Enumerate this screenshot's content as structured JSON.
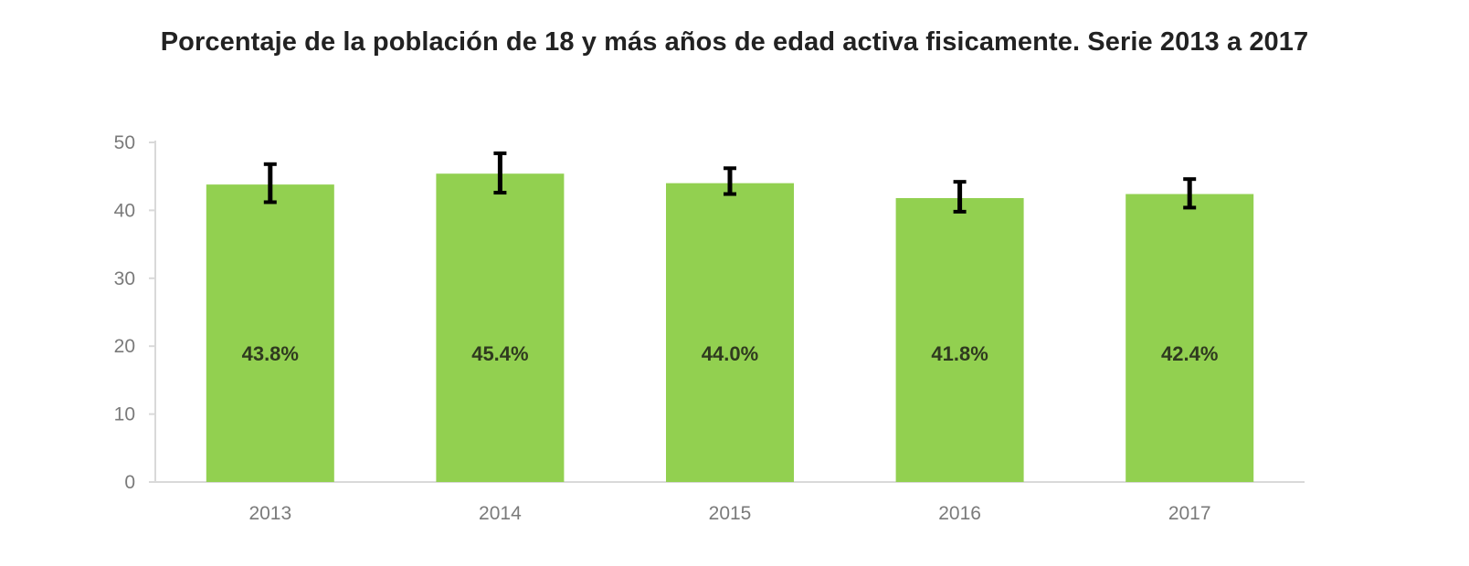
{
  "chart_data": {
    "type": "bar",
    "title": "Porcentaje de la población de 18 y más años de edad activa fisicamente. Serie 2013 a 2017",
    "xlabel": "",
    "ylabel": "",
    "categories": [
      "2013",
      "2014",
      "2015",
      "2016",
      "2017"
    ],
    "values": [
      43.8,
      45.4,
      44.0,
      41.8,
      42.4
    ],
    "value_labels": [
      "43.8%",
      "45.4%",
      "44.0%",
      "41.8%",
      "42.4%"
    ],
    "error_bars": [
      {
        "low": 41.2,
        "high": 46.8
      },
      {
        "low": 42.6,
        "high": 48.4
      },
      {
        "low": 42.4,
        "high": 46.2
      },
      {
        "low": 39.8,
        "high": 44.2
      },
      {
        "low": 40.4,
        "high": 44.6
      }
    ],
    "ylim": [
      0,
      50
    ],
    "yticks": [
      "0",
      "10",
      "20",
      "30",
      "40",
      "50"
    ],
    "grid": false,
    "legend": "none",
    "colors": {
      "bar": "#92d050",
      "error_bar": "#000000",
      "axis": "#d9d9d9"
    }
  }
}
